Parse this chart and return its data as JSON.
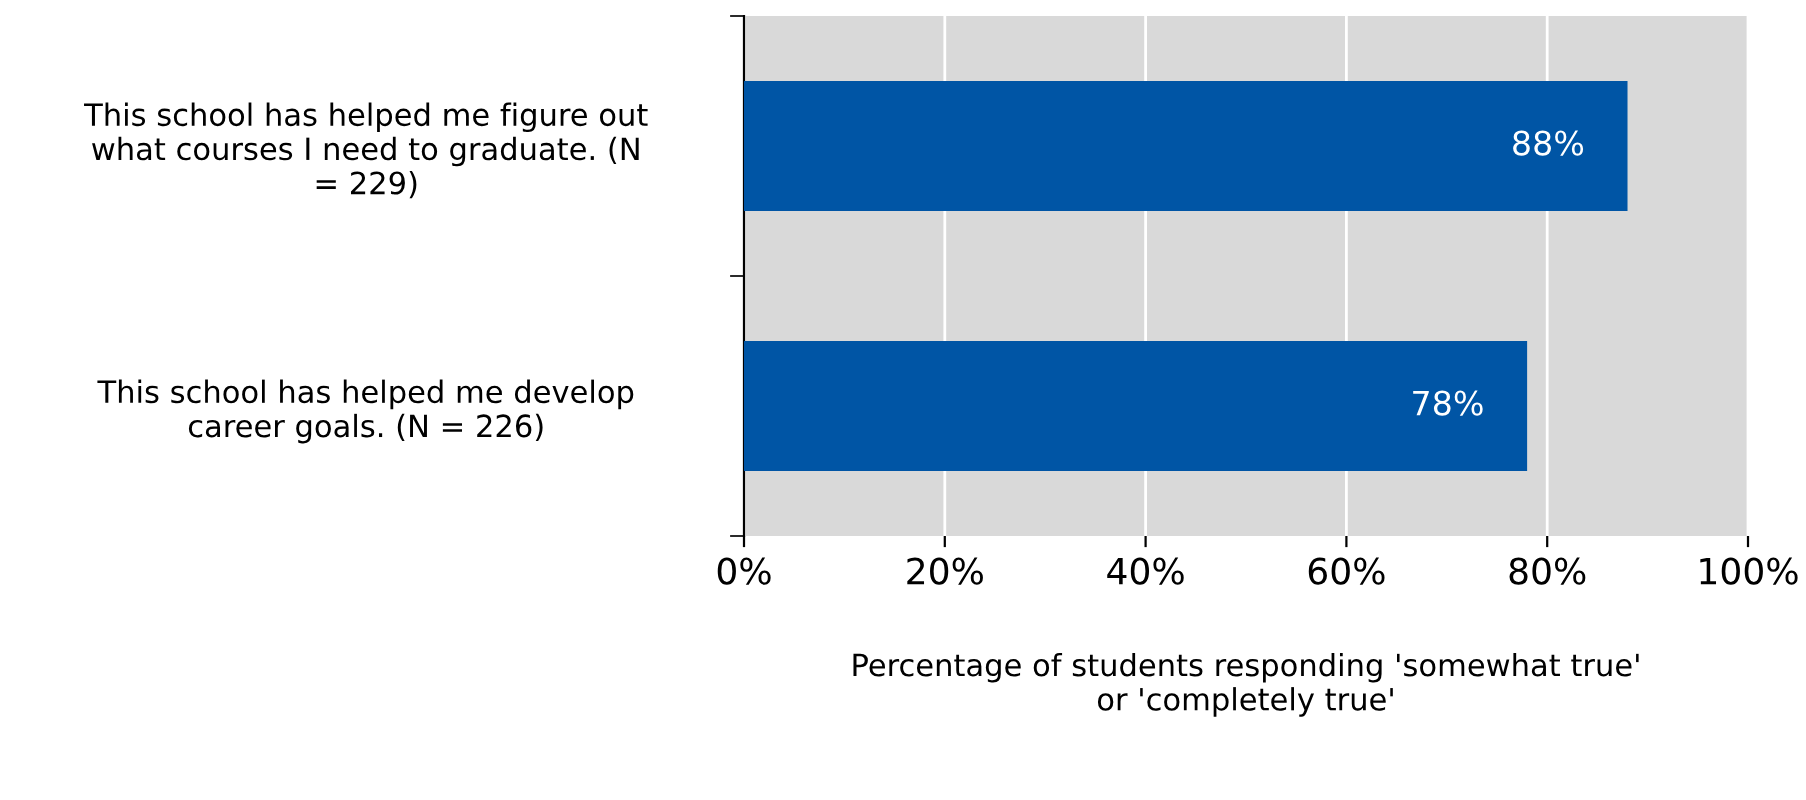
{
  "chart_data": {
    "type": "bar",
    "orientation": "horizontal",
    "categories": [
      "This school has helped me figure out\nwhat courses I need to graduate. (N\n= 229)",
      "This school has helped me develop\ncareer goals. (N = 226)"
    ],
    "values": [
      88,
      78
    ],
    "color": "#0055a5",
    "value_labels": [
      "88%",
      "78%"
    ],
    "xlabel": "Percentage of students responding 'somewhat true'\nor 'completely true'",
    "xlim": [
      0,
      100
    ],
    "xticks": [
      {
        "value": 0,
        "label": "0%"
      },
      {
        "value": 20,
        "label": "20%"
      },
      {
        "value": 40,
        "label": "40%"
      },
      {
        "value": 60,
        "label": "60%"
      },
      {
        "value": 80,
        "label": "80%"
      },
      {
        "value": 100,
        "label": "100%"
      }
    ],
    "grid": "x"
  }
}
